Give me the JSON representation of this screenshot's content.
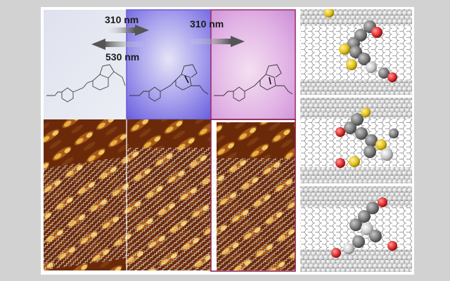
{
  "figure": {
    "arrows": {
      "forward_1": "310 nm",
      "reverse_1": "530 nm",
      "forward_2": "310 nm"
    },
    "panel_tints": [
      "#e4e6f2",
      "#7a6fe0",
      "#e2b3e6"
    ],
    "stm_colors": {
      "dark": "#5a1f06",
      "mid": "#b06a1a",
      "bright": "#f0c860"
    },
    "model_colors": {
      "carbon": "#8c8c8c",
      "hydrogen": "#e8e8e8",
      "sulfur": "#e2c21a",
      "oxygen": "#e03030"
    }
  }
}
